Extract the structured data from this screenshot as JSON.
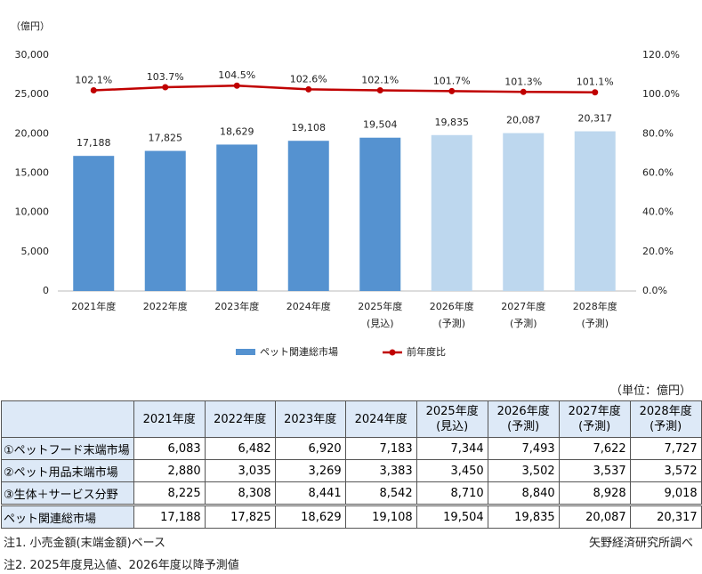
{
  "chart_data": {
    "type": "bar-line",
    "y_label": "（億円）",
    "categories": [
      [
        "2021年度"
      ],
      [
        "2022年度"
      ],
      [
        "2023年度"
      ],
      [
        "2024年度"
      ],
      [
        "2025年度",
        "(見込)"
      ],
      [
        "2026年度",
        "(予測)"
      ],
      [
        "2027年度",
        "(予測)"
      ],
      [
        "2028年度",
        "(予測)"
      ]
    ],
    "series": [
      {
        "name": "ペット関連総市場",
        "type": "bar",
        "colors": [
          "#5592d0",
          "#5592d0",
          "#5592d0",
          "#5592d0",
          "#5592d0",
          "#bdd7ee",
          "#bdd7ee",
          "#bdd7ee"
        ],
        "color": "#5592d0",
        "values": [
          17188,
          17825,
          18629,
          19108,
          19504,
          19835,
          20087,
          20317
        ],
        "value_labels": [
          "17,188",
          "17,825",
          "18,629",
          "19,108",
          "19,504",
          "19,835",
          "20,087",
          "20,317"
        ]
      },
      {
        "name": "前年度比",
        "type": "line",
        "axis": "y2",
        "color": "#c00000",
        "values": [
          102.1,
          103.7,
          104.5,
          102.6,
          102.1,
          101.7,
          101.3,
          101.1
        ],
        "value_labels": [
          "102.1%",
          "103.7%",
          "104.5%",
          "102.6%",
          "102.1%",
          "101.7%",
          "101.3%",
          "101.1%"
        ]
      }
    ],
    "ylim": [
      0,
      30000
    ],
    "yticks": [
      0,
      {
        "value": 5000,
        "label": "5,000"
      },
      {
        "value": 10000,
        "label": "10,000"
      },
      {
        "value": 15000,
        "label": "15,000"
      },
      {
        "value": 20000,
        "label": "20,000"
      },
      {
        "value": 25000,
        "label": "25,000"
      },
      {
        "value": 30000,
        "label": "30,000"
      }
    ],
    "y2lim": [
      0,
      120
    ],
    "y2ticks": [
      {
        "value": 0,
        "label": "0.0%"
      },
      {
        "value": 20,
        "label": "20.0%"
      },
      {
        "value": 40,
        "label": "40.0%"
      },
      {
        "value": 60,
        "label": "60.0%"
      },
      {
        "value": 80,
        "label": "80.0%"
      },
      {
        "value": 100,
        "label": "100.0%"
      },
      {
        "value": 120,
        "label": "120.0%"
      }
    ],
    "grid": false,
    "legend": "bottom"
  },
  "table": {
    "unit": "（単位：億円）",
    "columns": [
      [
        "2021年度"
      ],
      [
        "2022年度"
      ],
      [
        "2023年度"
      ],
      [
        "2024年度"
      ],
      [
        "2025年度",
        "(見込)"
      ],
      [
        "2026年度",
        "(予測)"
      ],
      [
        "2027年度",
        "(予測)"
      ],
      [
        "2028年度",
        "(予測)"
      ]
    ],
    "rows": [
      {
        "label": "①ペットフード末端市場",
        "values": [
          "6,083",
          "6,482",
          "6,920",
          "7,183",
          "7,344",
          "7,493",
          "7,622",
          "7,727"
        ]
      },
      {
        "label": "②ペット用品末端市場",
        "values": [
          "2,880",
          "3,035",
          "3,269",
          "3,383",
          "3,450",
          "3,502",
          "3,537",
          "3,572"
        ]
      },
      {
        "label": "③生体＋サービス分野",
        "values": [
          "8,225",
          "8,308",
          "8,441",
          "8,542",
          "8,710",
          "8,840",
          "8,928",
          "9,018"
        ]
      },
      {
        "label": "ペット関連総市場",
        "values": [
          "17,188",
          "17,825",
          "18,629",
          "19,108",
          "19,504",
          "19,835",
          "20,087",
          "20,317"
        ]
      }
    ]
  },
  "notes": [
    "注1. 小売金額(末端金額)ベース",
    "注2. 2025年度見込値、2026年度以降予測値"
  ],
  "source": "矢野経済研究所調べ"
}
